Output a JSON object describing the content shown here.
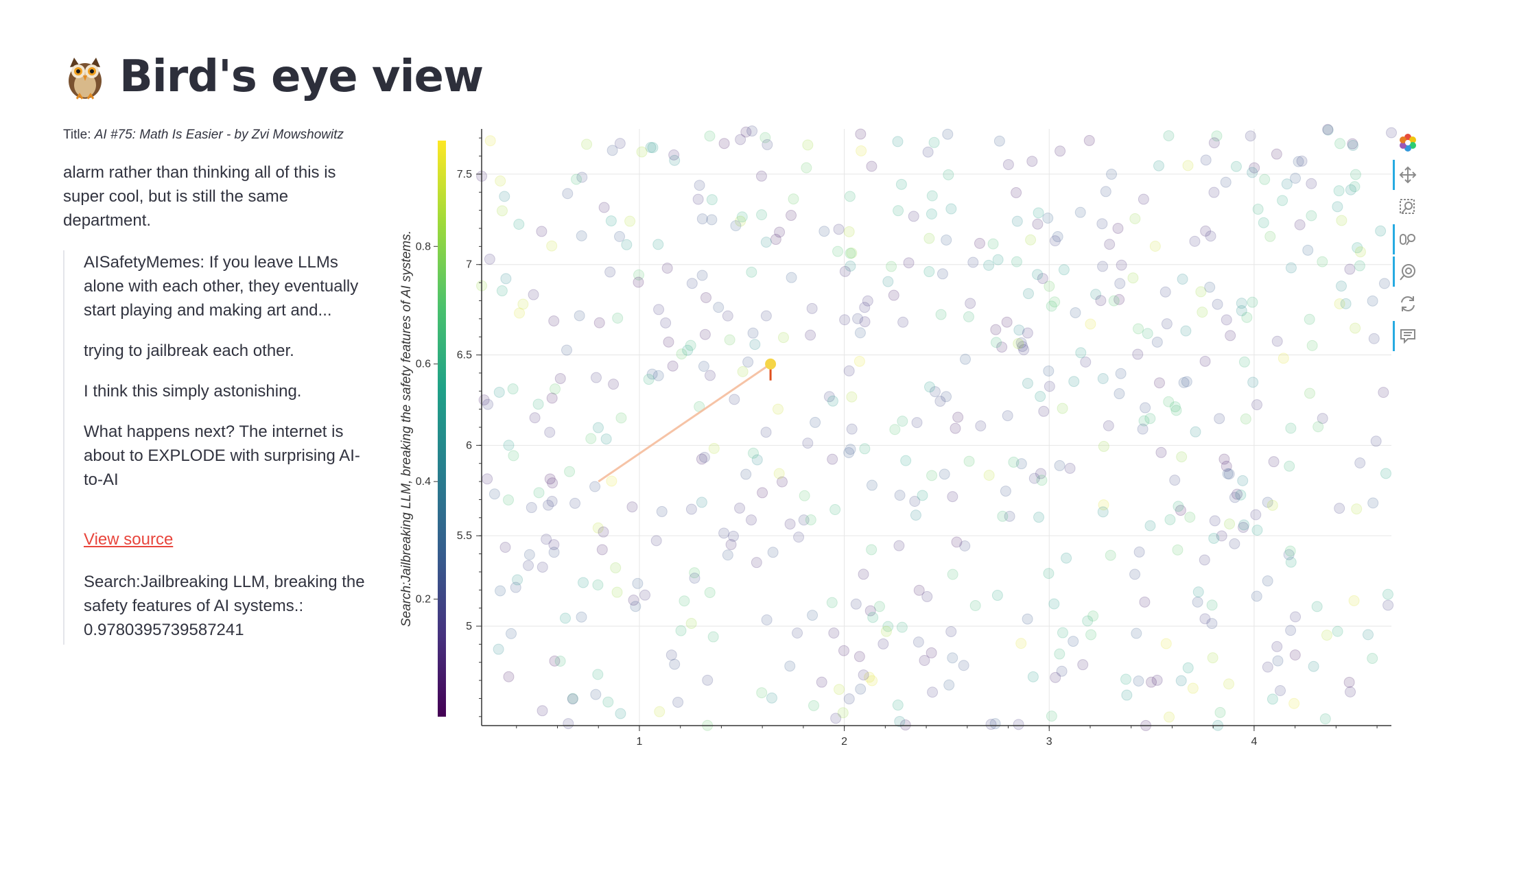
{
  "page": {
    "title": "Bird's eye view",
    "logo_icon": "owl-icon"
  },
  "article": {
    "title_prefix": "Title: ",
    "title": "AI #75: Math Is Easier - by Zvi Mowshowitz",
    "excerpt": "alarm rather than thinking all of this is super cool, but is still the same department.",
    "quote": [
      "AISafetyMemes: If you leave LLMs alone with each other, they eventually start playing and making art and...",
      "trying to jailbreak each other.",
      "I think this simply astonishing.",
      "What happens next? The internet is about to EXPLODE with surprising AI-to-AI"
    ],
    "view_source_label": "View source",
    "search_result": "Search:Jailbreaking LLM, breaking the safety features of AI systems.: 0.9780395739587241"
  },
  "colors": {
    "link": "#e8453c",
    "highlight_point": "#f5d547",
    "trajectory": "#f4b896",
    "marker": "#e0501e",
    "colormap": "viridis"
  },
  "chart_data": {
    "type": "scatter",
    "ylabel": "Search:Jailbreaking LLM, breaking the safety features of AI systems.",
    "xlim": [
      0.23,
      4.67
    ],
    "ylim": [
      4.45,
      7.75
    ],
    "x_ticks": [
      1,
      2,
      3,
      4
    ],
    "y_ticks": [
      5,
      5.5,
      6,
      6.5,
      7,
      7.5
    ],
    "colorbar": {
      "range": [
        0,
        0.98
      ],
      "ticks": [
        0.2,
        0.4,
        0.6,
        0.8
      ],
      "colormap": "viridis"
    },
    "grid": true,
    "point_count": 620,
    "trajectory": {
      "from": [
        0.8,
        5.8
      ],
      "to": [
        1.64,
        6.45
      ]
    },
    "highlighted_point": {
      "x": 1.64,
      "y": 6.45,
      "value": 0.98
    }
  },
  "toolbar": {
    "tools": [
      {
        "name": "bokeh-logo",
        "icon": "bokeh-logo-icon",
        "active": false
      },
      {
        "name": "pan-tool",
        "icon": "pan-icon",
        "active": true
      },
      {
        "name": "box-zoom-tool",
        "icon": "box-zoom-icon",
        "active": false
      },
      {
        "name": "wheel-zoom-tool",
        "icon": "wheel-zoom-icon",
        "active": true
      },
      {
        "name": "hover-reset-tool",
        "icon": "wheel-pan-icon",
        "active": true
      },
      {
        "name": "reset-tool",
        "icon": "reset-icon",
        "active": false
      },
      {
        "name": "hover-tool",
        "icon": "hover-icon",
        "active": true
      }
    ]
  }
}
